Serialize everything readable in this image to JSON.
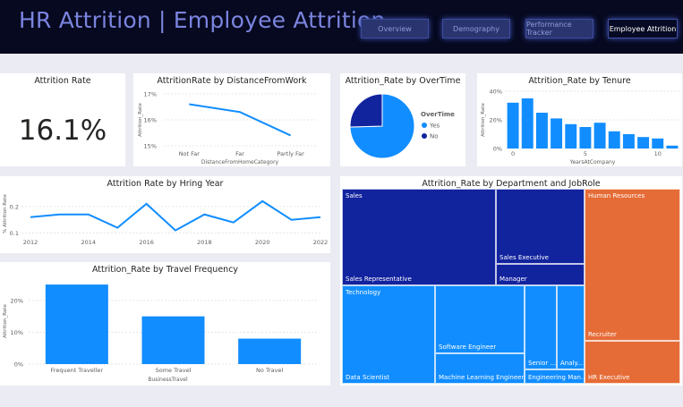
{
  "header": {
    "title": "HR Attrition | Employee Attrition",
    "nav": [
      "Overview",
      "Demography",
      "Performance Tracker",
      "Employee Attrition"
    ],
    "active_nav": "Employee Attrition"
  },
  "kpi": {
    "title": "Attrition Rate",
    "value": "16.1%"
  },
  "colors": {
    "accent": "#118dff",
    "dark_blue": "#12239e",
    "orange": "#e66c37",
    "header_bg": "#06091f"
  },
  "chart_data": [
    {
      "id": "distance",
      "type": "line",
      "title": "AttritionRate by DistanceFromWork",
      "xlabel": "DistanceFromHomeCategory",
      "ylabel": "Attrition_Rate",
      "categories": [
        "Not Far",
        "Far",
        "Partly Far"
      ],
      "values": [
        16.6,
        16.3,
        15.4
      ],
      "yticks": [
        "17%",
        "16%",
        "15%"
      ],
      "ylim": [
        14.9,
        17.1
      ]
    },
    {
      "id": "overtime",
      "type": "pie",
      "title": "Attrition_Rate by OverTime",
      "legend_title": "OverTime",
      "labels": [
        "Yes",
        "No"
      ],
      "values": [
        30.5,
        10.4
      ],
      "legend": "right"
    },
    {
      "id": "tenure",
      "type": "bar",
      "title": "Attrition_Rate by Tenure",
      "xlabel": "YearsAtCompany",
      "ylabel": "Attrition_Rate",
      "x": [
        0,
        1,
        2,
        3,
        4,
        5,
        6,
        7,
        8,
        9,
        10,
        11
      ],
      "values": [
        32,
        35,
        25,
        21,
        17,
        15,
        18,
        12,
        10,
        8,
        7,
        2
      ],
      "xticks": [
        "0",
        "5",
        "10"
      ],
      "yticks": [
        "40%",
        "20%",
        "0%"
      ],
      "ylim": [
        0,
        40
      ]
    },
    {
      "id": "hiring",
      "type": "line",
      "title": "Attrition Rate by Hring Year",
      "ylabel": "% Attrition Rate",
      "x": [
        2012,
        2013,
        2014,
        2015,
        2016,
        2017,
        2018,
        2019,
        2020,
        2021,
        2022
      ],
      "values": [
        0.16,
        0.17,
        0.17,
        0.12,
        0.21,
        0.11,
        0.17,
        0.14,
        0.22,
        0.15,
        0.16
      ],
      "xticks": [
        "2012",
        "2014",
        "2016",
        "2018",
        "2020",
        "2022"
      ],
      "yticks": [
        "0.2",
        "0.1"
      ],
      "ylim": [
        0.085,
        0.26
      ]
    },
    {
      "id": "travel",
      "type": "bar",
      "title": "Attrition_Rate by Travel Frequency",
      "xlabel": "BusinessTravel",
      "ylabel": "Attrition_Rate",
      "categories": [
        "Frequent Traveller",
        "Some Travel",
        "No Travel"
      ],
      "values": [
        25,
        15,
        8
      ],
      "yticks": [
        "20%",
        "10%",
        "0%"
      ],
      "ylim": [
        0,
        27
      ]
    },
    {
      "id": "treemap",
      "type": "treemap",
      "title": "Attrition_Rate by Department and JobRole",
      "departments": [
        {
          "name": "Sales",
          "color": "#12239e",
          "roles": [
            "Sales Representative",
            "Sales Executive",
            "Manager"
          ]
        },
        {
          "name": "Technology",
          "color": "#118dff",
          "roles": [
            "Data Scientist",
            "Software Engineer",
            "Machine Learning Engineer",
            "Senior ...",
            "Engineering Man...",
            "Analy..."
          ]
        },
        {
          "name": "Human Resources",
          "color": "#e66c37",
          "roles": [
            "Recruiter",
            "HR Executive"
          ]
        }
      ]
    }
  ]
}
